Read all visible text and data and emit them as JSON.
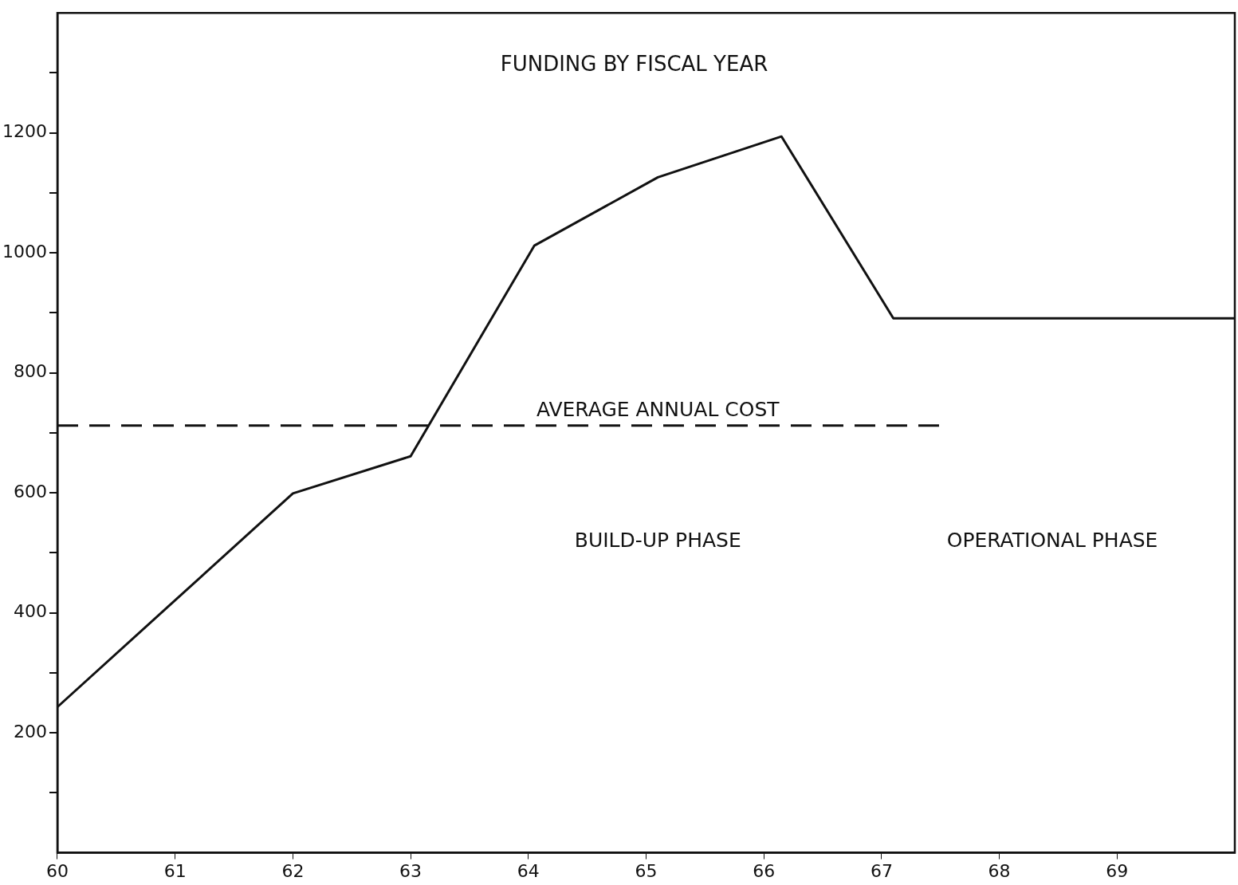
{
  "chart_data": {
    "type": "line",
    "title": "FUNDING BY FISCAL YEAR",
    "xlim": [
      60,
      70
    ],
    "xticks": [
      60,
      61,
      62,
      63,
      64,
      65,
      66,
      67,
      68,
      69
    ],
    "ylim": [
      0,
      1400
    ],
    "yticks": [
      {
        "value": 100,
        "label": null
      },
      200,
      {
        "value": 300,
        "label": null
      },
      400,
      {
        "value": 500,
        "label": null
      },
      600,
      {
        "value": 700,
        "label": null
      },
      800,
      {
        "value": 900,
        "label": null
      },
      1000,
      {
        "value": 1100,
        "label": null
      },
      1200,
      {
        "value": 1300,
        "label": null
      }
    ],
    "series": [
      {
        "color": "#111111",
        "x": [
          60,
          62,
          63,
          64.05,
          65.1,
          66.15,
          67.1,
          70
        ],
        "values": [
          243,
          599,
          661,
          1012,
          1126,
          1194,
          891,
          891
        ]
      },
      {
        "name": "AVERAGE ANNUAL COST",
        "color": "#111111",
        "line_style": "dashed",
        "x": [
          60,
          67.5
        ],
        "values": [
          712,
          712
        ]
      }
    ],
    "annotations": [
      "BUILD-UP PHASE",
      "OPERATIONAL PHASE"
    ],
    "grid": false,
    "legend": false,
    "marker": "none",
    "line_style": "solid"
  }
}
